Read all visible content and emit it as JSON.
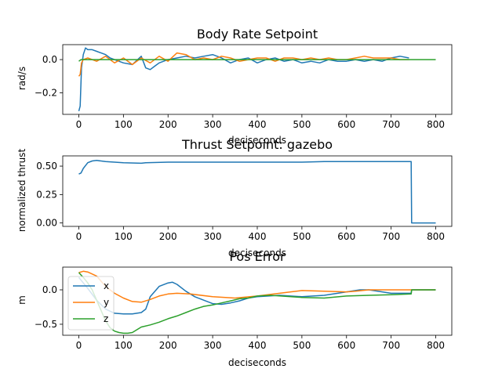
{
  "chart_data": [
    {
      "type": "line",
      "title": "Body Rate Setpoint",
      "xlabel": "deciseconds",
      "ylabel": "rad/s",
      "xlim": [
        -36,
        836
      ],
      "ylim": [
        -0.33,
        0.09
      ],
      "xticks": [
        0,
        100,
        200,
        300,
        400,
        500,
        600,
        700,
        800
      ],
      "yticks": [
        0.0,
        -0.2
      ],
      "ytick_labels": [
        "0.0",
        "−0.2"
      ],
      "grid": false,
      "series": [
        {
          "color": "#1f77b4",
          "x": [
            0,
            3,
            6,
            10,
            15,
            20,
            30,
            40,
            50,
            60,
            70,
            80,
            100,
            120,
            140,
            150,
            160,
            170,
            180,
            200,
            220,
            240,
            260,
            280,
            300,
            310,
            320,
            340,
            360,
            380,
            400,
            420,
            440,
            460,
            480,
            500,
            520,
            540,
            560,
            580,
            600,
            620,
            640,
            660,
            680,
            700,
            720,
            740
          ],
          "y": [
            -0.31,
            -0.28,
            -0.05,
            0.03,
            0.07,
            0.06,
            0.06,
            0.05,
            0.04,
            0.03,
            0.01,
            0.0,
            -0.02,
            -0.03,
            0.02,
            -0.05,
            -0.06,
            -0.04,
            -0.02,
            0.0,
            0.01,
            0.02,
            0.01,
            0.02,
            0.03,
            0.02,
            0.01,
            -0.02,
            0.0,
            0.01,
            -0.02,
            0.0,
            0.01,
            -0.01,
            0.0,
            -0.02,
            -0.01,
            -0.02,
            0.0,
            -0.01,
            -0.01,
            0.0,
            -0.01,
            0.0,
            -0.01,
            0.01,
            0.02,
            0.01
          ]
        },
        {
          "color": "#ff7f0e",
          "x": [
            0,
            3,
            6,
            10,
            20,
            40,
            60,
            80,
            100,
            120,
            140,
            160,
            180,
            200,
            220,
            240,
            260,
            280,
            300,
            320,
            340,
            360,
            380,
            400,
            420,
            440,
            460,
            480,
            500,
            520,
            540,
            560,
            580,
            600,
            620,
            640,
            660,
            680,
            700,
            720,
            740
          ],
          "y": [
            -0.1,
            -0.09,
            -0.02,
            0.0,
            0.01,
            -0.01,
            0.02,
            -0.02,
            0.01,
            -0.03,
            0.01,
            -0.02,
            0.02,
            -0.01,
            0.04,
            0.03,
            0.0,
            0.01,
            0.0,
            0.02,
            0.01,
            -0.01,
            0.0,
            0.01,
            0.01,
            -0.01,
            0.01,
            0.01,
            0.0,
            0.01,
            0.0,
            0.01,
            0.0,
            0.0,
            0.01,
            0.02,
            0.01,
            0.01,
            0.01,
            0.0,
            0.0
          ]
        },
        {
          "color": "#2ca02c",
          "x": [
            0,
            5,
            10,
            50,
            100,
            200,
            300,
            400,
            500,
            600,
            700,
            745,
            800
          ],
          "y": [
            -0.01,
            0.0,
            0.0,
            0.0,
            0.0,
            0.0,
            0.0,
            0.0,
            0.0,
            0.0,
            0.0,
            0.0,
            0.0
          ]
        }
      ]
    },
    {
      "type": "line",
      "title": "Thrust Setpoint: gazebo",
      "xlabel": "deciseconds",
      "ylabel": "normalized thrust",
      "xlim": [
        -36,
        836
      ],
      "ylim": [
        -0.03,
        0.59
      ],
      "xticks": [
        0,
        100,
        200,
        300,
        400,
        500,
        600,
        700,
        800
      ],
      "yticks": [
        0.0,
        0.25,
        0.5
      ],
      "ytick_labels": [
        "0.00",
        "0.25",
        "0.50"
      ],
      "grid": false,
      "series": [
        {
          "color": "#1f77b4",
          "x": [
            0,
            5,
            10,
            20,
            30,
            40,
            60,
            80,
            100,
            140,
            150,
            200,
            250,
            300,
            350,
            400,
            450,
            500,
            550,
            600,
            650,
            700,
            745,
            746,
            800
          ],
          "y": [
            0.43,
            0.44,
            0.48,
            0.53,
            0.545,
            0.55,
            0.54,
            0.535,
            0.53,
            0.525,
            0.53,
            0.535,
            0.535,
            0.535,
            0.535,
            0.535,
            0.535,
            0.535,
            0.54,
            0.54,
            0.54,
            0.54,
            0.54,
            0.0,
            0.0
          ]
        }
      ]
    },
    {
      "type": "line",
      "title": "Pos Error",
      "xlabel": "deciseconds",
      "ylabel": "m",
      "xlim": [
        -36,
        836
      ],
      "ylim": [
        -0.66,
        0.33
      ],
      "xticks": [
        0,
        100,
        200,
        300,
        400,
        500,
        600,
        700,
        800
      ],
      "yticks": [
        0.0,
        -0.5
      ],
      "ytick_labels": [
        "0.0",
        "−0.5"
      ],
      "legend": "upper-left",
      "grid": false,
      "series": [
        {
          "name": "x",
          "color": "#1f77b4",
          "x": [
            0,
            10,
            20,
            40,
            60,
            80,
            100,
            120,
            140,
            150,
            160,
            180,
            200,
            210,
            220,
            240,
            260,
            280,
            300,
            320,
            340,
            360,
            380,
            400,
            450,
            500,
            550,
            600,
            630,
            650,
            680,
            700,
            745,
            746,
            800
          ],
          "y": [
            0.18,
            0.1,
            0.02,
            -0.15,
            -0.28,
            -0.34,
            -0.35,
            -0.35,
            -0.33,
            -0.28,
            -0.1,
            0.05,
            0.1,
            0.11,
            0.08,
            -0.02,
            -0.1,
            -0.15,
            -0.2,
            -0.21,
            -0.19,
            -0.16,
            -0.12,
            -0.1,
            -0.08,
            -0.1,
            -0.08,
            -0.03,
            0.0,
            0.0,
            -0.03,
            -0.05,
            -0.05,
            0.0,
            0.0
          ]
        },
        {
          "name": "y",
          "color": "#ff7f0e",
          "x": [
            0,
            10,
            20,
            40,
            60,
            80,
            100,
            120,
            140,
            160,
            180,
            200,
            220,
            250,
            300,
            350,
            400,
            450,
            500,
            550,
            600,
            620,
            650,
            700,
            745,
            746,
            800
          ],
          "y": [
            0.25,
            0.27,
            0.26,
            0.2,
            0.05,
            -0.05,
            -0.12,
            -0.17,
            -0.18,
            -0.14,
            -0.09,
            -0.06,
            -0.05,
            -0.06,
            -0.1,
            -0.12,
            -0.09,
            -0.05,
            -0.01,
            -0.02,
            -0.03,
            -0.02,
            0.0,
            0.0,
            0.0,
            0.0,
            0.0
          ]
        },
        {
          "name": "z",
          "color": "#2ca02c",
          "x": [
            0,
            10,
            20,
            30,
            40,
            50,
            60,
            70,
            80,
            90,
            100,
            110,
            120,
            130,
            140,
            160,
            180,
            200,
            220,
            240,
            260,
            280,
            300,
            320,
            340,
            360,
            380,
            400,
            430,
            500,
            550,
            600,
            650,
            700,
            745,
            746,
            800
          ],
          "y": [
            0.25,
            0.18,
            0.1,
            0.0,
            -0.15,
            -0.3,
            -0.45,
            -0.55,
            -0.6,
            -0.62,
            -0.63,
            -0.63,
            -0.62,
            -0.58,
            -0.54,
            -0.51,
            -0.47,
            -0.42,
            -0.38,
            -0.33,
            -0.28,
            -0.24,
            -0.22,
            -0.19,
            -0.16,
            -0.13,
            -0.12,
            -0.09,
            -0.08,
            -0.11,
            -0.12,
            -0.09,
            -0.08,
            -0.07,
            -0.06,
            0.0,
            0.0
          ]
        }
      ]
    }
  ]
}
